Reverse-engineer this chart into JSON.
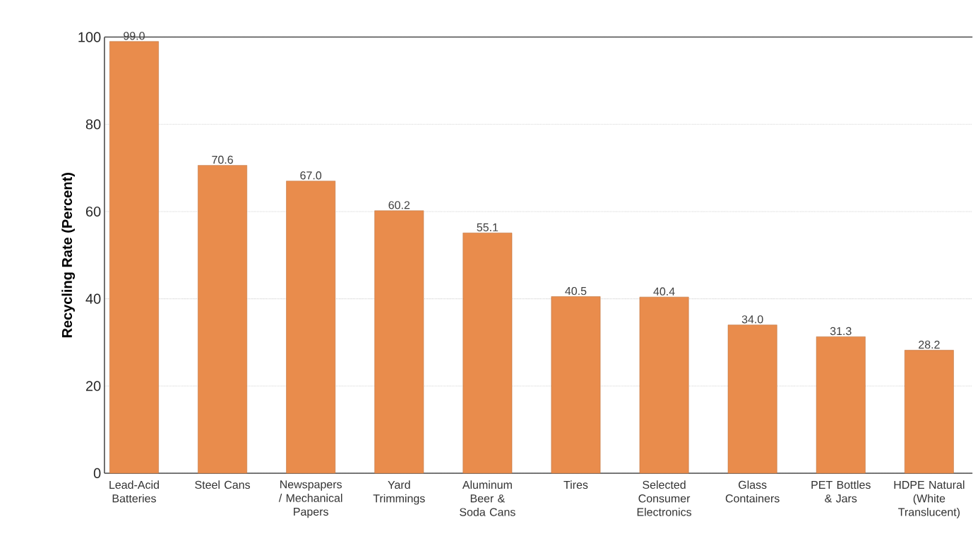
{
  "chart_data": {
    "type": "bar",
    "ylabel": "Recycling Rate (Percent)",
    "categories": [
      "Lead-Acid Batteries",
      "Steel Cans",
      "Newspapers / Mechanical Papers",
      "Yard Trimmings",
      "Aluminum Beer & Soda Cans",
      "Tires",
      "Selected Consumer Electronics",
      "Glass Containers",
      "PET Bottles & Jars",
      "HDPE Natural (White Translucent)"
    ],
    "values": [
      99.0,
      70.6,
      67.0,
      60.2,
      55.1,
      40.5,
      40.4,
      34.0,
      31.3,
      28.2
    ],
    "value_labels": [
      "99.0",
      "70.6",
      "67.0",
      "60.2",
      "55.1",
      "40.5",
      "40.4",
      "34.0",
      "31.3",
      "28.2"
    ],
    "color": "#e98c4c",
    "ylim": [
      0,
      100
    ],
    "yticks": [
      0,
      20,
      40,
      60,
      80,
      100
    ],
    "grid": "y"
  }
}
